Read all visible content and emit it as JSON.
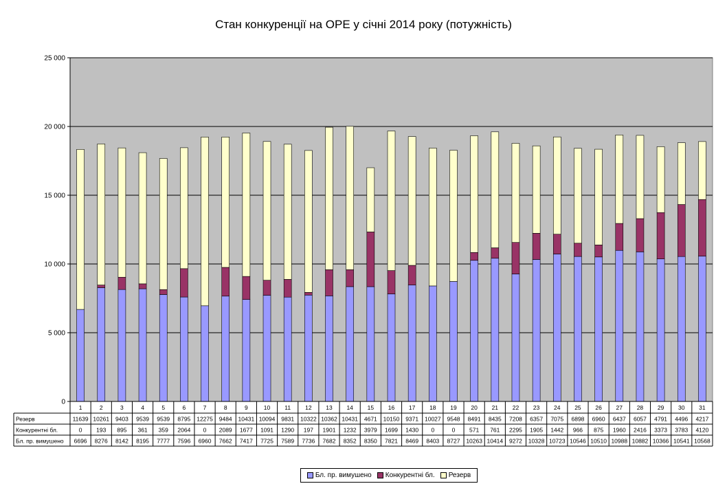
{
  "chart_data": {
    "type": "bar",
    "stacked": true,
    "title": "Стан конкуренції на ОРЕ  у січні 2014 року (потужність)",
    "ylim": [
      0,
      25000
    ],
    "yticks": [
      0,
      5000,
      10000,
      15000,
      20000,
      25000
    ],
    "ytick_labels": [
      "0",
      "5 000",
      "10 000",
      "15 000",
      "20 000",
      "25 000"
    ],
    "grid": true,
    "legend_position": "bottom",
    "categories": [
      "1",
      "2",
      "3",
      "4",
      "5",
      "6",
      "7",
      "8",
      "9",
      "10",
      "11",
      "12",
      "13",
      "14",
      "15",
      "16",
      "17",
      "18",
      "19",
      "20",
      "21",
      "22",
      "23",
      "24",
      "25",
      "26",
      "27",
      "28",
      "29",
      "30",
      "31"
    ],
    "series": [
      {
        "name": "Бл. пр. вимушено",
        "color": "#9999ff",
        "values": [
          6696,
          8276,
          8142,
          8195,
          7777,
          7596,
          6960,
          7662,
          7417,
          7725,
          7589,
          7736,
          7682,
          8352,
          8350,
          7821,
          8469,
          8403,
          8727,
          10263,
          10414,
          9272,
          10328,
          10723,
          10546,
          10510,
          10988,
          10882,
          10366,
          10541,
          10568
        ]
      },
      {
        "name": "Конкурентні бл.",
        "color": "#993366",
        "values": [
          0,
          193,
          895,
          361,
          359,
          2064,
          0,
          2089,
          1677,
          1091,
          1290,
          197,
          1901,
          1232,
          3979,
          1699,
          1430,
          0,
          0,
          571,
          761,
          2295,
          1905,
          1442,
          966,
          875,
          1960,
          2416,
          3373,
          3783,
          4120
        ]
      },
      {
        "name": "Резерв",
        "color": "#ffffcc",
        "values": [
          11639,
          10261,
          9403,
          9539,
          9539,
          8795,
          12275,
          9484,
          10431,
          10094,
          9831,
          10322,
          10362,
          10431,
          4671,
          10150,
          9371,
          10027,
          9548,
          8491,
          8435,
          7208,
          6357,
          7075,
          6898,
          6960,
          6437,
          6057,
          4791,
          4496,
          4217
        ]
      }
    ],
    "table_rows": [
      "Резерв",
      "Конкурентні бл.",
      "Бл. пр. вимушено"
    ],
    "plot_background": "#c0c0c0"
  }
}
